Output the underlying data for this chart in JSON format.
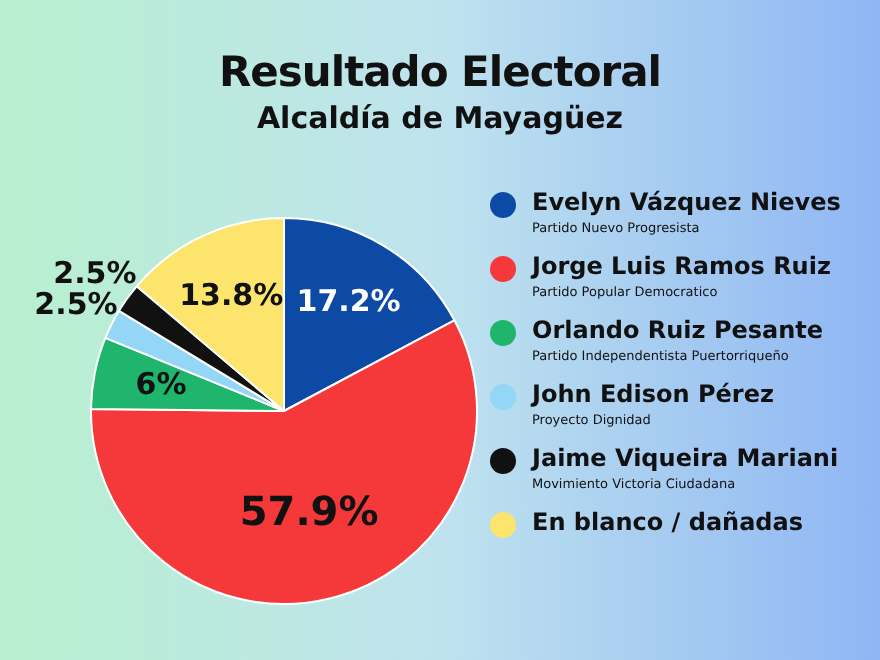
{
  "chart_data": {
    "type": "pie",
    "title": "Resultado Electoral",
    "subtitle": "Alcaldía de Mayagüez",
    "categories": [
      "Evelyn Vázquez Nieves",
      "Jorge Luis Ramos Ruiz",
      "Orlando Ruiz Pesante",
      "John Edison Pérez",
      "Jaime Viqueira Mariani",
      "En blanco / dañadas"
    ],
    "values": [
      17.2,
      57.9,
      6,
      2.5,
      2.5,
      13.8
    ],
    "value_labels": [
      "17.2%",
      "57.9%",
      "6%",
      "2.5%",
      "2.5%",
      "13.8%"
    ],
    "colors": [
      "#0c4aa6",
      "#f5393a",
      "#1fb56c",
      "#93d6f6",
      "#111111",
      "#fde46c"
    ],
    "annotations": [
      "Partido Nuevo Progresista",
      "Partido Popular Democratico",
      "Partido Independentista Puertorriqueño",
      "Proyecto Dignidad",
      "Movimiento Victoria Ciudadana"
    ],
    "legend": "right"
  }
}
